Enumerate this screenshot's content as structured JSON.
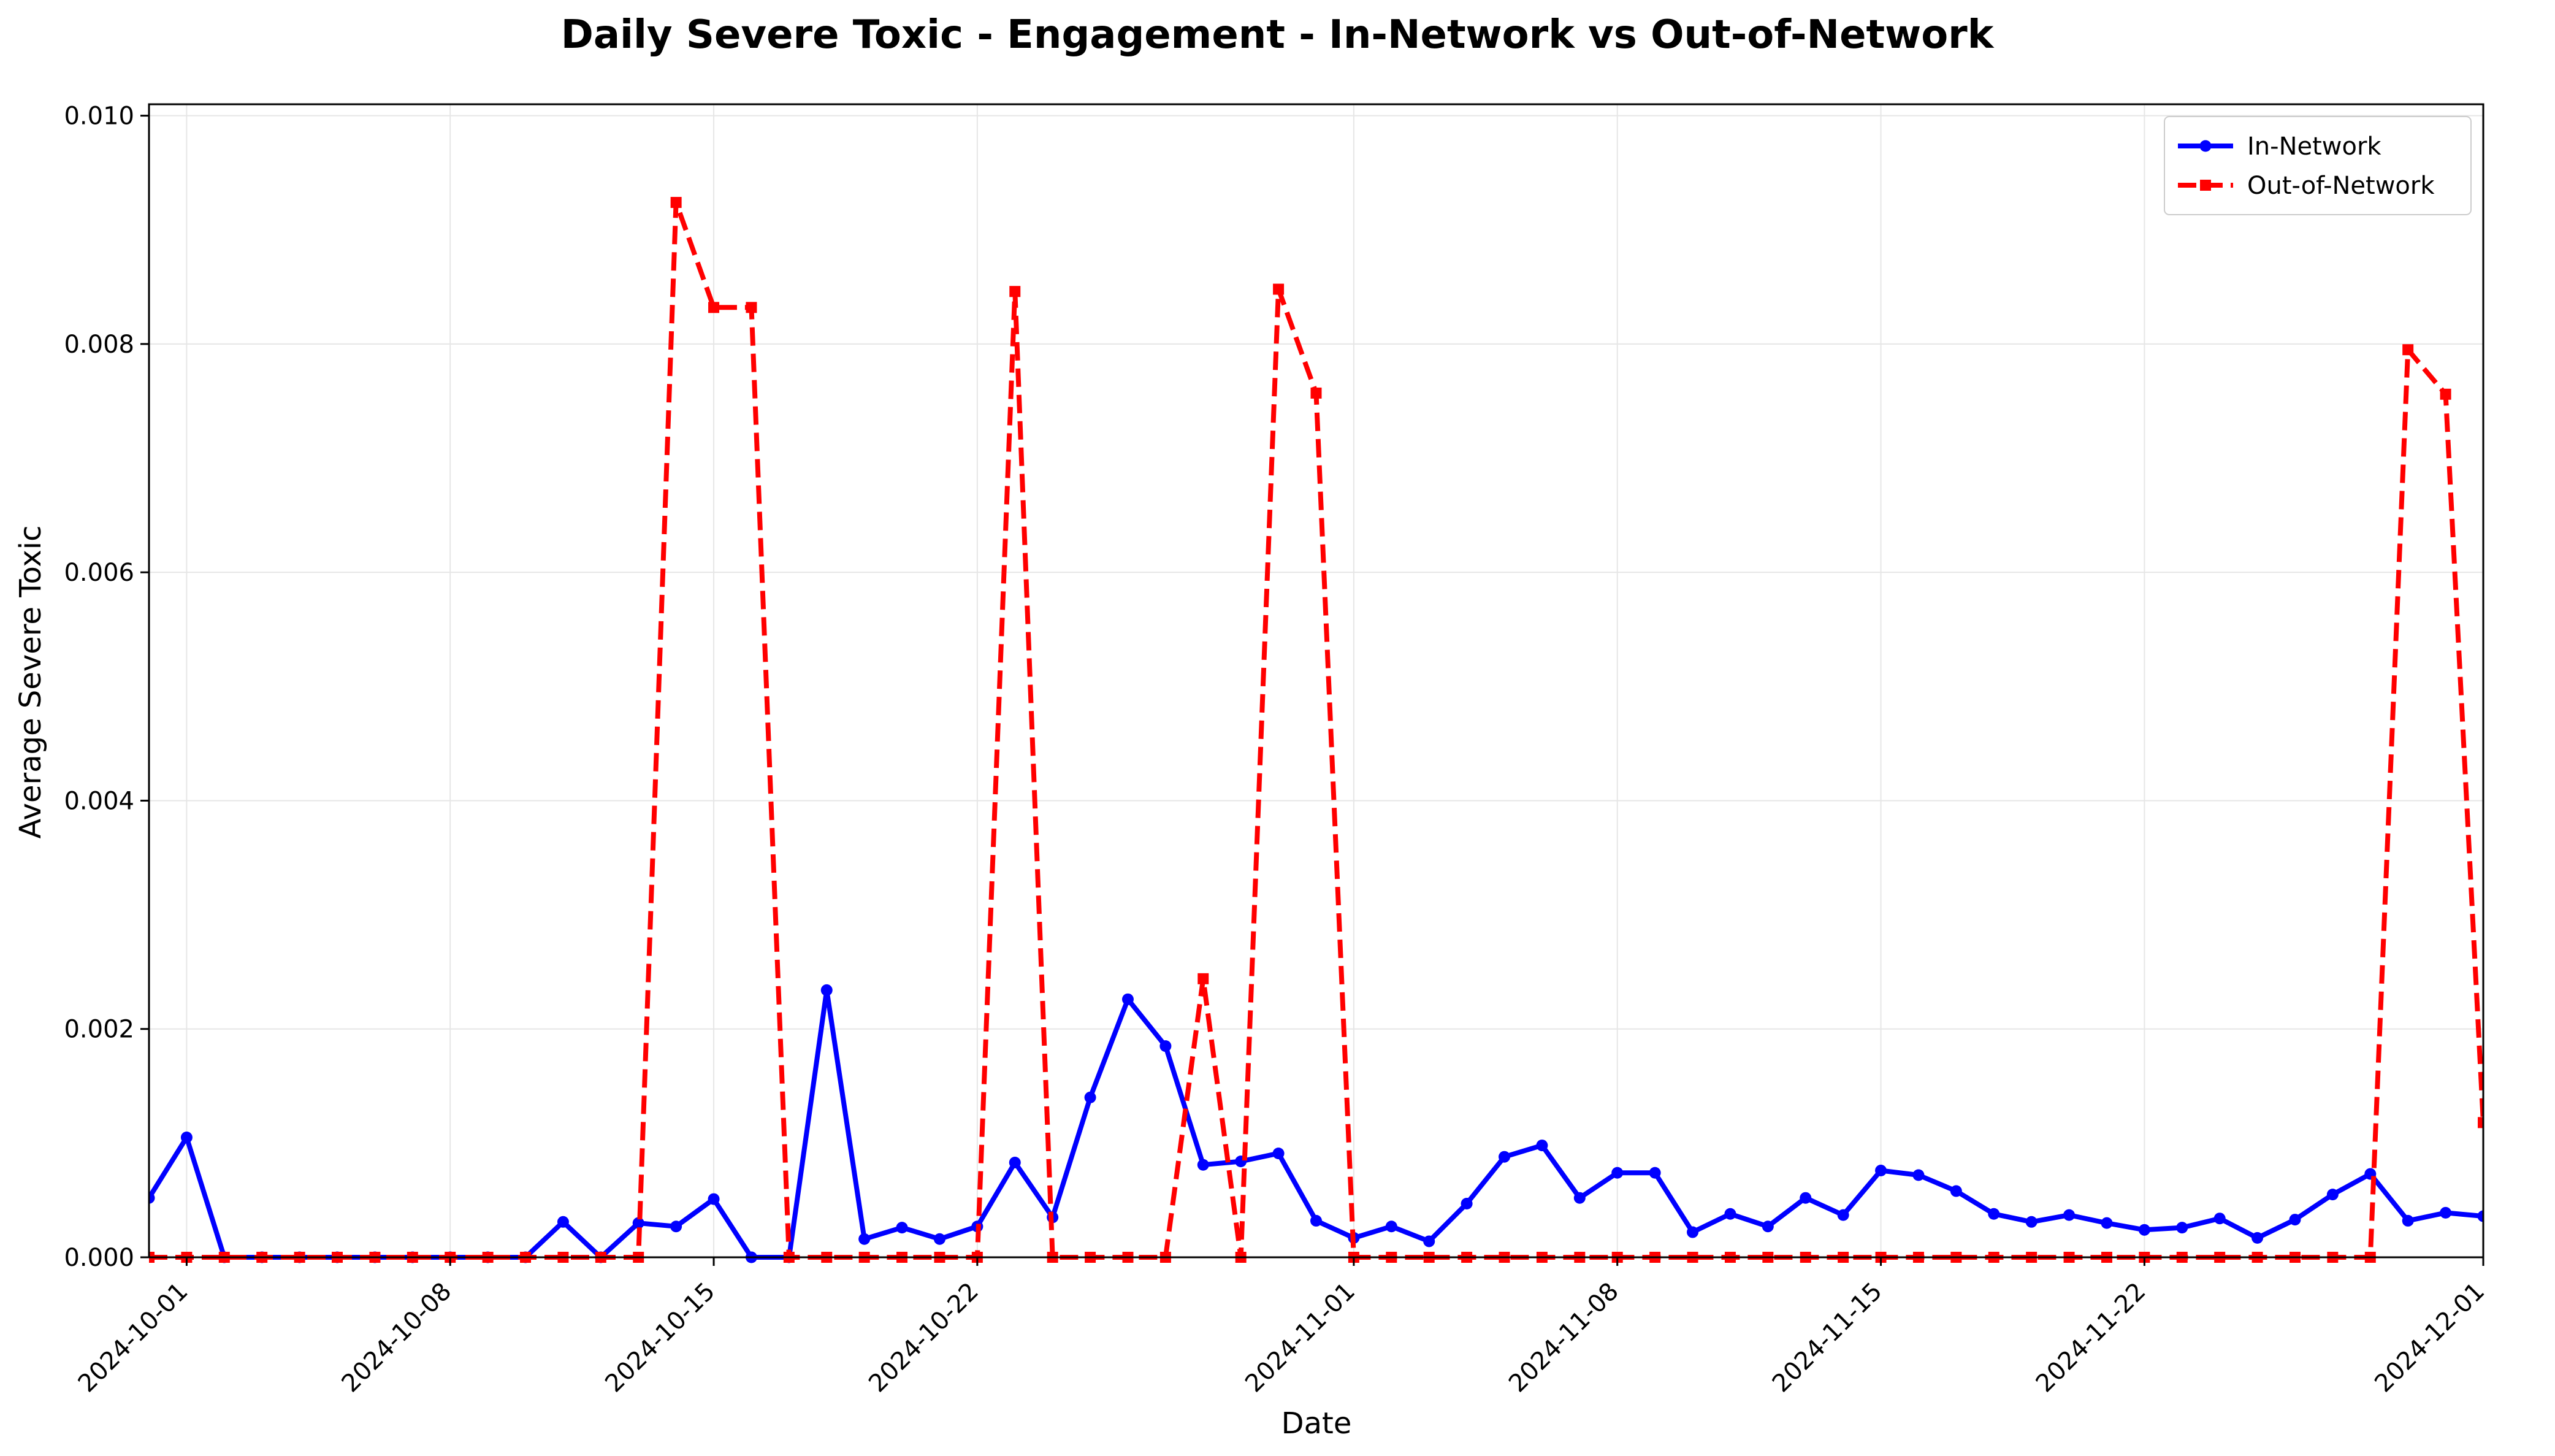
{
  "chart_data": {
    "type": "line",
    "title": "Daily Severe Toxic - Engagement - In-Network vs Out-of-Network",
    "xlabel": "Date",
    "ylabel": "Average Severe Toxic",
    "x_range": [
      "2024-09-30",
      "2024-12-01"
    ],
    "ylim": [
      0,
      0.0101
    ],
    "x_ticks": [
      "2024-10-01",
      "2024-10-08",
      "2024-10-15",
      "2024-10-22",
      "2024-11-01",
      "2024-11-08",
      "2024-11-15",
      "2024-11-22",
      "2024-12-01"
    ],
    "y_ticks": [
      "0.000",
      "0.002",
      "0.004",
      "0.006",
      "0.008",
      "0.010"
    ],
    "grid": true,
    "legend_position": "top-right",
    "x": [
      "2024-09-30",
      "2024-10-01",
      "2024-10-02",
      "2024-10-03",
      "2024-10-04",
      "2024-10-05",
      "2024-10-06",
      "2024-10-07",
      "2024-10-08",
      "2024-10-09",
      "2024-10-10",
      "2024-10-11",
      "2024-10-12",
      "2024-10-13",
      "2024-10-14",
      "2024-10-15",
      "2024-10-16",
      "2024-10-17",
      "2024-10-18",
      "2024-10-19",
      "2024-10-20",
      "2024-10-21",
      "2024-10-22",
      "2024-10-23",
      "2024-10-24",
      "2024-10-25",
      "2024-10-26",
      "2024-10-27",
      "2024-10-28",
      "2024-10-29",
      "2024-10-30",
      "2024-10-31",
      "2024-11-01",
      "2024-11-02",
      "2024-11-03",
      "2024-11-04",
      "2024-11-05",
      "2024-11-06",
      "2024-11-07",
      "2024-11-08",
      "2024-11-09",
      "2024-11-10",
      "2024-11-11",
      "2024-11-12",
      "2024-11-13",
      "2024-11-14",
      "2024-11-15",
      "2024-11-16",
      "2024-11-17",
      "2024-11-18",
      "2024-11-19",
      "2024-11-20",
      "2024-11-21",
      "2024-11-22",
      "2024-11-23",
      "2024-11-24",
      "2024-11-25",
      "2024-11-26",
      "2024-11-27",
      "2024-11-28",
      "2024-11-29",
      "2024-11-30",
      "2024-12-01"
    ],
    "series": [
      {
        "name": "In-Network",
        "color": "#0000ff",
        "line_style": "solid",
        "marker": "circle",
        "values": [
          0.00052,
          0.00105,
          0,
          0,
          0,
          0,
          0,
          0,
          0,
          0,
          0,
          0.00031,
          0,
          0.0003,
          0.00027,
          0.00051,
          0,
          0,
          0.00234,
          0.00016,
          0.00026,
          0.00016,
          0.00027,
          0.00083,
          0.00035,
          0.0014,
          0.00226,
          0.00185,
          0.00081,
          0.00084,
          0.00091,
          0.00032,
          0.00017,
          0.00027,
          0.00014,
          0.00047,
          0.00088,
          0.00098,
          0.00052,
          0.00074,
          0.00074,
          0.00022,
          0.00038,
          0.00027,
          0.00052,
          0.00037,
          0.00076,
          0.00072,
          0.00058,
          0.00038,
          0.00031,
          0.00037,
          0.0003,
          0.00024,
          0.00026,
          0.00034,
          0.00017,
          0.00033,
          0.00055,
          0.00073,
          0.00032,
          0.00039,
          0.00036
        ]
      },
      {
        "name": "Out-of-Network",
        "color": "#ff0000",
        "line_style": "dashed",
        "marker": "square",
        "values": [
          0,
          0,
          0,
          0,
          0,
          0,
          0,
          0,
          0,
          0,
          0,
          0,
          0,
          0,
          0.00924,
          0.00832,
          0.00832,
          0,
          0,
          0,
          0,
          0,
          0,
          0.00846,
          0,
          0,
          0,
          0,
          0.00244,
          0,
          0.00848,
          0.00757,
          0,
          0,
          0,
          0,
          0,
          0,
          0,
          0,
          0,
          0,
          0,
          0,
          0,
          0,
          0,
          0,
          0,
          0,
          0,
          0,
          0,
          0,
          0,
          0,
          0,
          0,
          0,
          0,
          0.00795,
          0.00756,
          0.00118
        ]
      }
    ]
  }
}
